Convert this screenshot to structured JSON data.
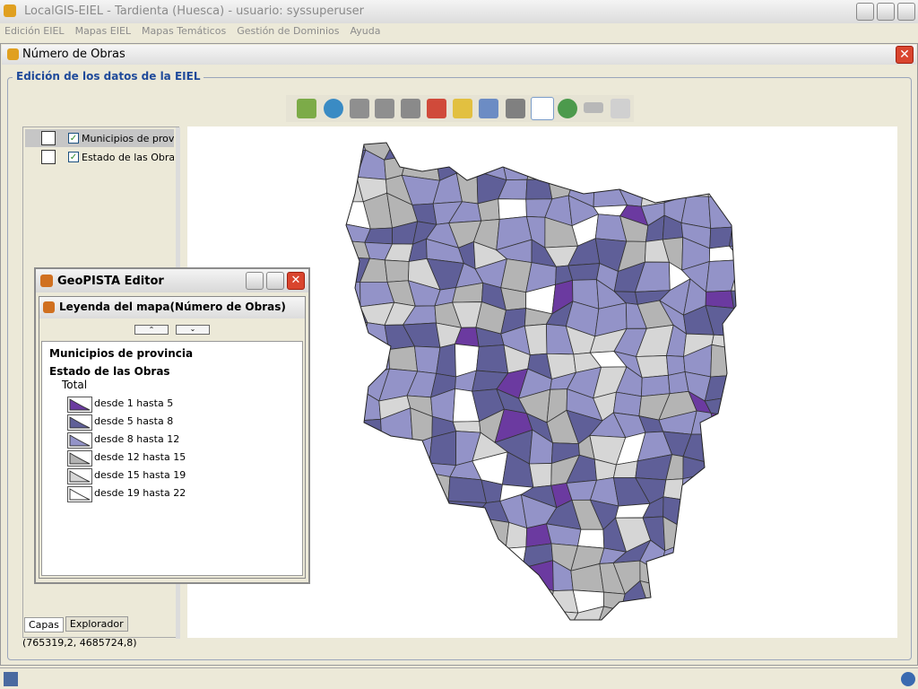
{
  "window": {
    "title": "LocalGIS-EIEL - Tardienta (Huesca) - usuario: syssuperuser",
    "menu": [
      "Edición EIEL",
      "Mapas EIEL",
      "Mapas Temáticos",
      "Gestión de Dominios",
      "Ayuda"
    ]
  },
  "frame": {
    "title": "Número de Obras",
    "group_title": "Edición de los datos de la EIEL",
    "layers": [
      "Municipios de provincia",
      "Estado de las Obras"
    ],
    "tabs": [
      "Capas",
      "Explorador"
    ],
    "status": "(765319,2, 4685724,8)"
  },
  "legend_dialog": {
    "title": "GeoPISTA Editor",
    "panel_title": "Leyenda del mapa(Número de Obras)",
    "layer_1": "Municipios de provincia",
    "layer_2": "Estado de las Obras",
    "sublabel": "Total",
    "items": [
      {
        "label": "desde 1 hasta 5",
        "color": "#6b3aa0"
      },
      {
        "label": "desde 5 hasta 8",
        "color": "#5f5f98"
      },
      {
        "label": "desde 8 hasta 12",
        "color": "#9393c8"
      },
      {
        "label": "desde 12 hasta 15",
        "color": "#b4b4b4"
      },
      {
        "label": "desde 15 hasta 19",
        "color": "#d6d6d6"
      },
      {
        "label": "desde 19 hasta 22",
        "color": "#ffffff"
      }
    ]
  }
}
